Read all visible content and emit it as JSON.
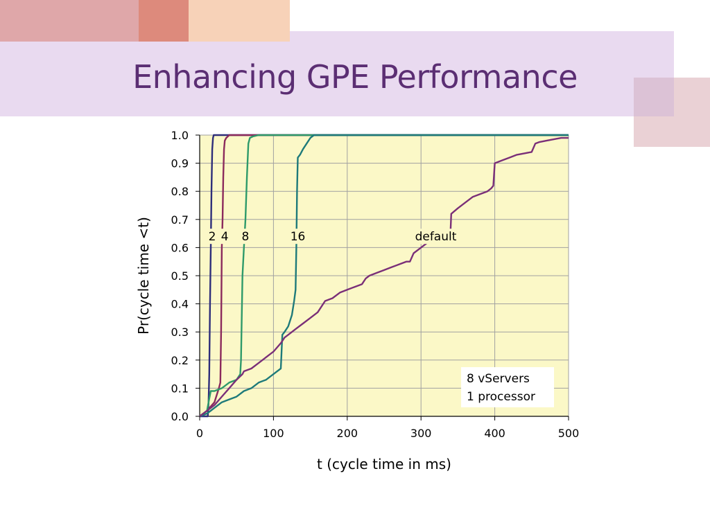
{
  "slide": {
    "title": "Enhancing GPE Performance"
  },
  "colors": {
    "title": "#5b2e73",
    "plot_background": "#fbf8c7",
    "grid": "#a0a0a0"
  },
  "chart_data": {
    "type": "line",
    "title": "",
    "xlabel": "t (cycle time in ms)",
    "ylabel": "Pr(cycle time <t)",
    "xlim": [
      0,
      500
    ],
    "ylim": [
      0,
      1.0
    ],
    "x_ticks": [
      "0",
      "100",
      "200",
      "300",
      "400",
      "500"
    ],
    "y_ticks": [
      "0.0",
      "0.1",
      "0.2",
      "0.3",
      "0.4",
      "0.5",
      "0.6",
      "0.7",
      "0.8",
      "0.9",
      "1.0"
    ],
    "grid": true,
    "annotation": [
      "8 vServers",
      "1 processor"
    ],
    "series": [
      {
        "name": "2",
        "color": "#2e2e7a",
        "x": [
          0,
          11,
          12,
          13,
          14,
          15,
          16,
          17,
          18,
          19,
          20,
          500
        ],
        "y": [
          0,
          0,
          0.05,
          0.15,
          0.4,
          0.6,
          0.8,
          0.95,
          0.99,
          1.0,
          1.0,
          1.0
        ]
      },
      {
        "name": "4",
        "color": "#8b2a5c",
        "x": [
          0,
          10,
          20,
          26,
          28,
          29,
          30,
          31,
          32,
          33,
          34,
          36,
          40,
          500
        ],
        "y": [
          0,
          0.02,
          0.05,
          0.1,
          0.12,
          0.3,
          0.6,
          0.7,
          0.85,
          0.95,
          0.98,
          0.99,
          1.0,
          1.0
        ]
      },
      {
        "name": "8",
        "color": "#2e9a6a",
        "x": [
          0,
          10,
          12,
          15,
          20,
          30,
          40,
          50,
          55,
          56,
          58,
          60,
          62,
          64,
          66,
          68,
          72,
          80,
          90,
          500
        ],
        "y": [
          0,
          0.02,
          0.05,
          0.09,
          0.09,
          0.1,
          0.12,
          0.13,
          0.15,
          0.2,
          0.5,
          0.6,
          0.7,
          0.85,
          0.97,
          0.99,
          0.995,
          1.0,
          1.0,
          1.0
        ]
      },
      {
        "name": "16",
        "color": "#1e7a7a",
        "x": [
          0,
          10,
          15,
          20,
          30,
          40,
          50,
          60,
          70,
          80,
          90,
          100,
          110,
          112,
          115,
          120,
          125,
          128,
          130,
          131,
          132,
          133,
          136,
          140,
          145,
          150,
          155,
          160,
          500
        ],
        "y": [
          0,
          0.01,
          0.02,
          0.03,
          0.05,
          0.06,
          0.07,
          0.09,
          0.1,
          0.12,
          0.13,
          0.15,
          0.17,
          0.29,
          0.3,
          0.32,
          0.36,
          0.41,
          0.45,
          0.6,
          0.8,
          0.92,
          0.93,
          0.95,
          0.97,
          0.99,
          1.0,
          1.0,
          1.0
        ]
      },
      {
        "name": "default",
        "color": "#7a2f78",
        "x": [
          0,
          10,
          20,
          30,
          40,
          50,
          58,
          60,
          70,
          80,
          90,
          100,
          110,
          115,
          120,
          130,
          140,
          150,
          160,
          170,
          180,
          190,
          200,
          210,
          220,
          225,
          230,
          240,
          250,
          260,
          270,
          280,
          285,
          290,
          300,
          310,
          320,
          330,
          340,
          341,
          350,
          360,
          370,
          380,
          390,
          395,
          398,
          400,
          410,
          420,
          430,
          440,
          450,
          455,
          460,
          470,
          480,
          490,
          500
        ],
        "y": [
          0,
          0.02,
          0.04,
          0.07,
          0.1,
          0.13,
          0.15,
          0.16,
          0.17,
          0.19,
          0.21,
          0.23,
          0.26,
          0.28,
          0.29,
          0.31,
          0.33,
          0.35,
          0.37,
          0.41,
          0.42,
          0.44,
          0.45,
          0.46,
          0.47,
          0.49,
          0.5,
          0.51,
          0.52,
          0.53,
          0.54,
          0.55,
          0.55,
          0.58,
          0.6,
          0.62,
          0.64,
          0.65,
          0.66,
          0.72,
          0.74,
          0.76,
          0.78,
          0.79,
          0.8,
          0.81,
          0.82,
          0.9,
          0.91,
          0.92,
          0.93,
          0.935,
          0.94,
          0.97,
          0.975,
          0.98,
          0.985,
          0.99,
          0.99
        ]
      }
    ]
  }
}
